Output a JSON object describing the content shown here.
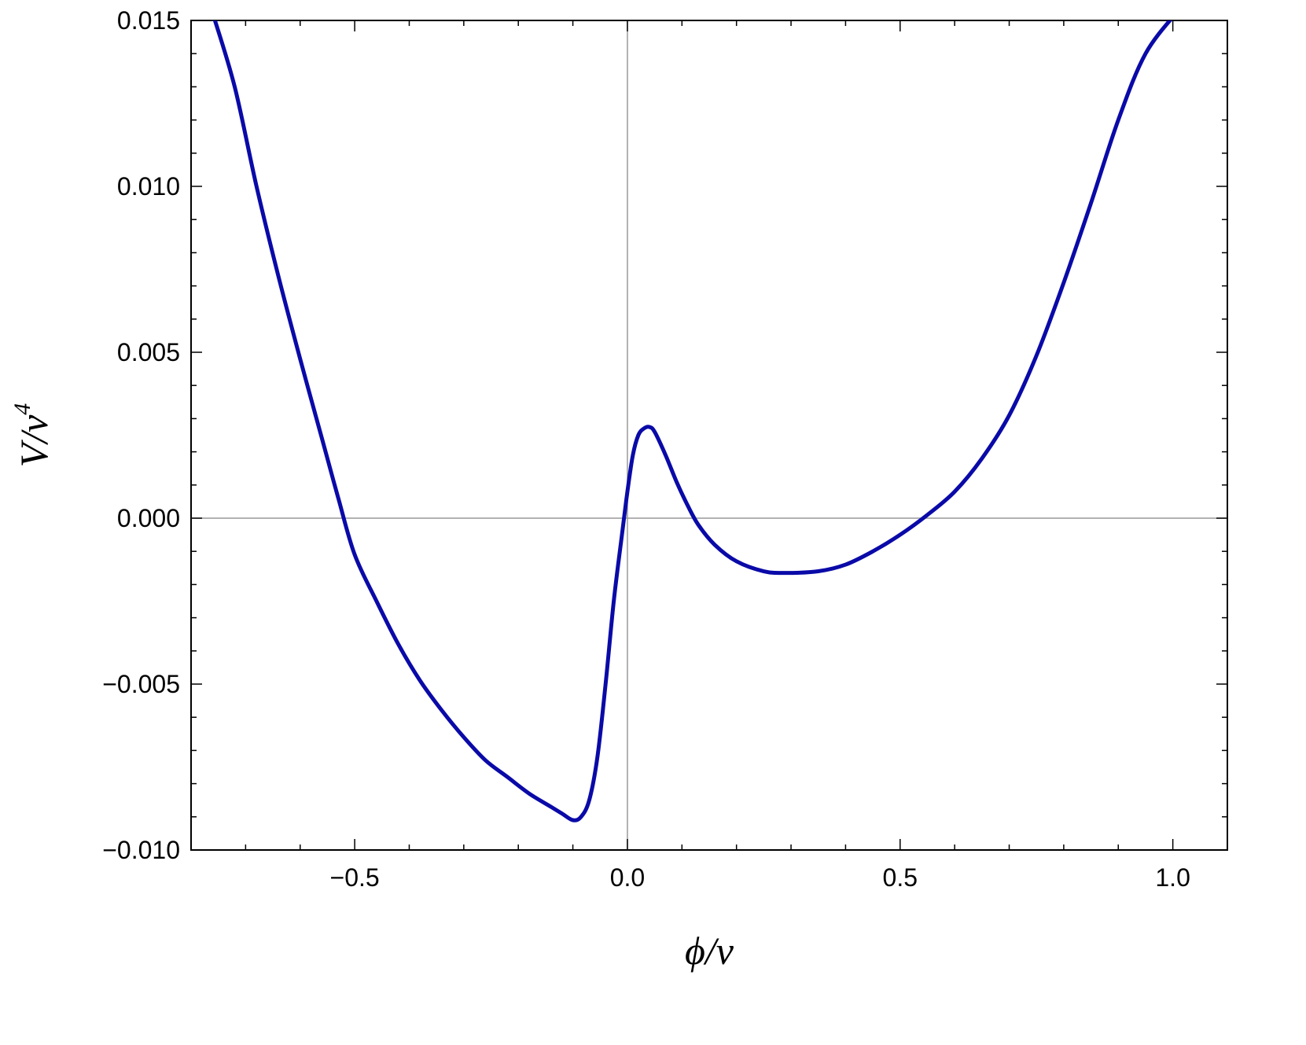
{
  "chart_data": {
    "type": "line",
    "title": "",
    "xlabel": {
      "base": "ϕ/v",
      "sup": ""
    },
    "ylabel": {
      "base": "V/v",
      "sup": "4"
    },
    "xlim": [
      -0.8,
      1.1
    ],
    "ylim": [
      -0.01,
      0.015
    ],
    "grid": false,
    "frame": true,
    "zero_lines": true,
    "line_color": "#0a0aa8",
    "x_ticks": [
      {
        "value": -0.5,
        "label": "−0.5"
      },
      {
        "value": 0.0,
        "label": "0.0"
      },
      {
        "value": 0.5,
        "label": "0.5"
      },
      {
        "value": 1.0,
        "label": "1.0"
      }
    ],
    "y_ticks": [
      {
        "value": -0.01,
        "label": "−0.010"
      },
      {
        "value": -0.005,
        "label": "−0.005"
      },
      {
        "value": 0.0,
        "label": "0.000"
      },
      {
        "value": 0.005,
        "label": "0.005"
      },
      {
        "value": 0.01,
        "label": "0.010"
      },
      {
        "value": 0.015,
        "label": "0.015"
      }
    ],
    "x_minor_step": 0.1,
    "y_minor_step": 0.001,
    "series": [
      {
        "name": "",
        "points": [
          [
            -0.76,
            0.0152
          ],
          [
            -0.72,
            0.013
          ],
          [
            -0.68,
            0.01
          ],
          [
            -0.64,
            0.0073
          ],
          [
            -0.6,
            0.0048
          ],
          [
            -0.56,
            0.0024
          ],
          [
            -0.53,
            0.0006
          ],
          [
            -0.5,
            -0.0011
          ],
          [
            -0.46,
            -0.0025
          ],
          [
            -0.42,
            -0.0038
          ],
          [
            -0.38,
            -0.0049
          ],
          [
            -0.34,
            -0.0058
          ],
          [
            -0.3,
            -0.0066
          ],
          [
            -0.26,
            -0.0073
          ],
          [
            -0.22,
            -0.0078
          ],
          [
            -0.18,
            -0.0083
          ],
          [
            -0.14,
            -0.0087
          ],
          [
            -0.12,
            -0.0089
          ],
          [
            -0.1,
            -0.0091
          ],
          [
            -0.085,
            -0.009
          ],
          [
            -0.07,
            -0.0085
          ],
          [
            -0.055,
            -0.0072
          ],
          [
            -0.04,
            -0.005
          ],
          [
            -0.025,
            -0.0025
          ],
          [
            -0.01,
            -0.0005
          ],
          [
            0.0,
            0.0008
          ],
          [
            0.01,
            0.0019
          ],
          [
            0.02,
            0.0025
          ],
          [
            0.03,
            0.0027
          ],
          [
            0.04,
            0.00275
          ],
          [
            0.05,
            0.0026
          ],
          [
            0.07,
            0.0019
          ],
          [
            0.09,
            0.0011
          ],
          [
            0.11,
            0.0004
          ],
          [
            0.13,
            -0.0002
          ],
          [
            0.16,
            -0.0008
          ],
          [
            0.2,
            -0.0013
          ],
          [
            0.25,
            -0.0016
          ],
          [
            0.29,
            -0.00165
          ],
          [
            0.35,
            -0.0016
          ],
          [
            0.4,
            -0.0014
          ],
          [
            0.45,
            -0.001
          ],
          [
            0.5,
            -0.0005
          ],
          [
            0.55,
            0.0001
          ],
          [
            0.6,
            0.0008
          ],
          [
            0.65,
            0.0018
          ],
          [
            0.7,
            0.0031
          ],
          [
            0.75,
            0.0049
          ],
          [
            0.8,
            0.0071
          ],
          [
            0.85,
            0.0095
          ],
          [
            0.9,
            0.012
          ],
          [
            0.95,
            0.014
          ],
          [
            1.01,
            0.0153
          ]
        ]
      }
    ]
  }
}
